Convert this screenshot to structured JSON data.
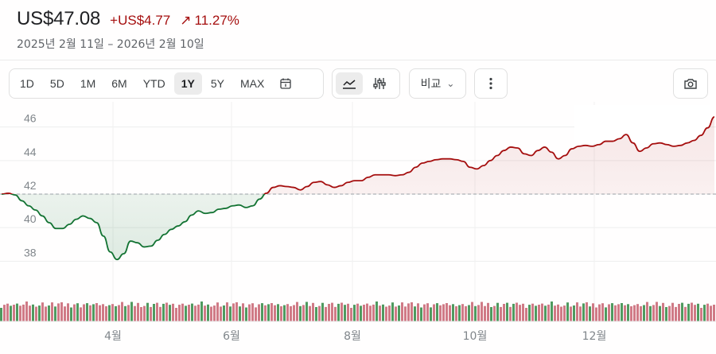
{
  "quote": {
    "price": "US$47.08",
    "change": "+US$4.77",
    "change_pct": "11.27%",
    "range_text": "2025년 2월 11일 – 2026년 2월 10일",
    "color_up": "#a50e0e",
    "color_down": "#137333"
  },
  "toolbar": {
    "ranges": [
      "1D",
      "5D",
      "1M",
      "6M",
      "YTD",
      "1Y",
      "5Y",
      "MAX"
    ],
    "active_range": "1Y",
    "compare_label": "비교",
    "icons": {
      "calendar": "calendar-icon",
      "chart_type": "line-chart-icon",
      "indicators": "sliders-icon",
      "compare": "chevron-down-icon",
      "more": "more-vertical-icon",
      "camera": "camera-icon"
    }
  },
  "chart_data": {
    "type": "line",
    "ylim": [
      36.5,
      47.5
    ],
    "y_ticks": [
      38,
      40,
      42,
      44,
      46
    ],
    "x_ticks": [
      "4월",
      "6월",
      "8월",
      "10월",
      "12월"
    ],
    "baseline": 42.0,
    "grid": true,
    "series": [
      {
        "values": [
          42.0,
          42.05,
          41.95,
          41.6,
          41.3,
          41.05,
          40.7,
          40.3,
          39.95,
          39.95,
          40.2,
          40.5,
          40.7,
          40.55,
          40.3,
          39.5,
          38.55,
          38.1,
          38.45,
          39.2,
          39.1,
          38.85,
          38.9,
          39.25,
          39.6,
          39.9,
          40.1,
          40.35,
          40.75,
          41.0,
          40.85,
          40.9,
          41.1,
          41.15,
          41.3,
          41.35,
          41.2,
          41.3,
          41.7,
          42.05,
          42.4,
          42.5,
          42.45,
          42.4,
          42.25,
          42.45,
          42.7,
          42.75,
          42.55,
          42.4,
          42.5,
          42.7,
          42.8,
          42.8,
          43.0,
          43.15,
          43.15,
          43.15,
          43.1,
          43.15,
          43.3,
          43.6,
          43.85,
          43.95,
          44.05,
          44.1,
          44.1,
          44.05,
          43.95,
          43.6,
          43.5,
          43.7,
          44.0,
          44.3,
          44.6,
          44.8,
          44.75,
          44.4,
          44.3,
          44.6,
          44.8,
          44.5,
          44.1,
          44.3,
          44.7,
          44.85,
          44.9,
          44.85,
          44.95,
          45.15,
          45.15,
          45.3,
          45.55,
          45.05,
          44.55,
          44.75,
          45.0,
          45.05,
          44.95,
          44.85,
          44.9,
          45.05,
          45.2,
          45.5,
          45.95,
          46.6
        ]
      }
    ],
    "volume_note": "daily volume bars, colored by up/down day"
  }
}
